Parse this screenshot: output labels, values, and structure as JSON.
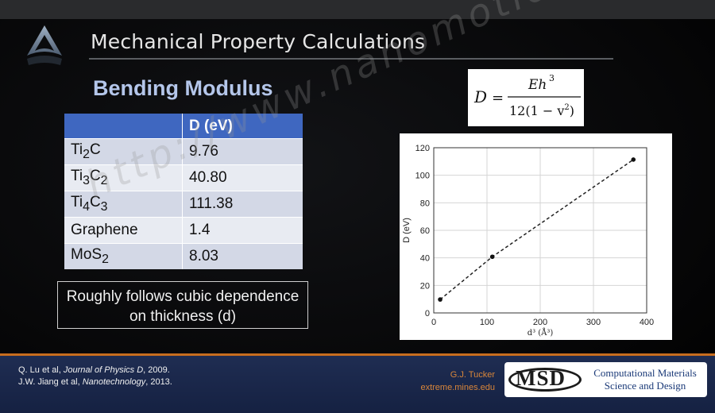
{
  "slide": {
    "title": "Mechanical Property Calculations",
    "heading": "Bending Modulus",
    "table": {
      "headers": [
        "",
        "D (eV)"
      ],
      "rows": [
        {
          "material": "Ti",
          "sub1": "2",
          "rest1": "C",
          "sub2": "",
          "rest2": "",
          "value": "9.76"
        },
        {
          "material": "Ti",
          "sub1": "3",
          "rest1": "C",
          "sub2": "2",
          "rest2": "",
          "value": "40.80"
        },
        {
          "material": "Ti",
          "sub1": "4",
          "rest1": "C",
          "sub2": "3",
          "rest2": "",
          "value": "111.38"
        },
        {
          "material": "Graphene",
          "sub1": "",
          "rest1": "",
          "sub2": "",
          "rest2": "",
          "value": "1.4"
        },
        {
          "material": "MoS",
          "sub1": "2",
          "rest1": "",
          "sub2": "",
          "rest2": "",
          "value": "8.03"
        }
      ]
    },
    "note": "Roughly follows cubic dependence on thickness (d)",
    "formula": {
      "lhs": "D",
      "eq": "=",
      "num": "Eh",
      "num_sup": "3",
      "den_a": "12(1 − v",
      "den_sup": "2",
      "den_b": ")"
    },
    "watermark": "http://www.nanomotion.com",
    "footer": {
      "ref1_authors": "Q. Lu et al, ",
      "ref1_journal": "Journal of Physics D",
      "ref1_year": ", 2009.",
      "ref2_authors": "J.W. Jiang et al, ",
      "ref2_journal": "Nanotechnology",
      "ref2_year": ", 2013.",
      "author": "G.J. Tucker",
      "site": "extreme.mines.edu",
      "logo_text": "MSD",
      "logo_sub1": "Computational Materials",
      "logo_sub2": "Science and Design"
    }
  },
  "colors": {
    "heading": "#b4c6ea",
    "table_header": "#3f67c0",
    "footer_accent": "#c86d1e",
    "footer_bg": "#1f2d52"
  },
  "chart_data": {
    "type": "scatter",
    "x": [
      12,
      110,
      375
    ],
    "y": [
      9.76,
      40.8,
      111.38
    ],
    "xlim": [
      0,
      400
    ],
    "ylim": [
      0,
      120
    ],
    "xticks": [
      0,
      100,
      200,
      300,
      400
    ],
    "yticks": [
      0,
      20,
      40,
      60,
      80,
      100,
      120
    ],
    "xlabel": "d³ (Å³)",
    "ylabel": "D (eV)",
    "grid": true,
    "fit_line": "dashed"
  }
}
